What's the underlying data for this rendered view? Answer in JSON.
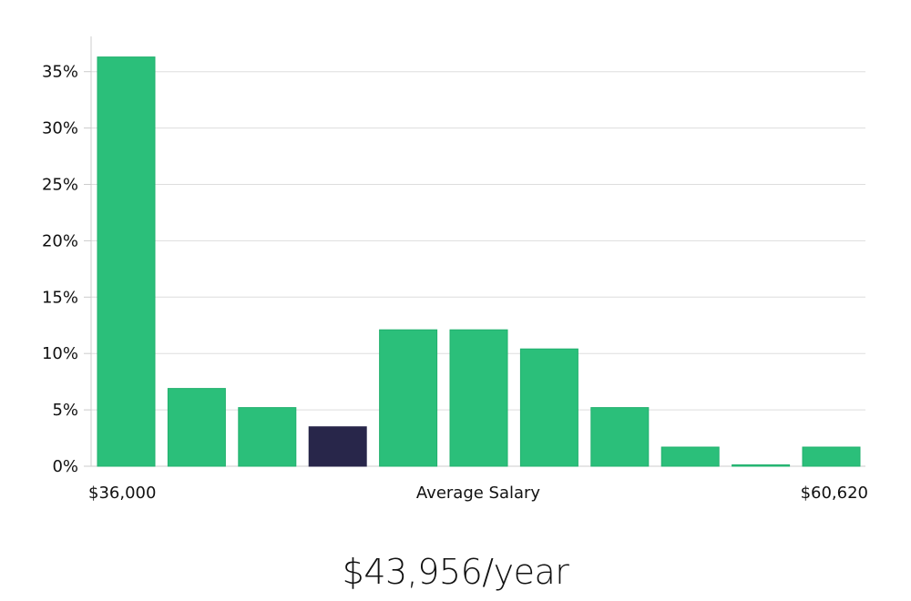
{
  "chart_data": {
    "type": "bar",
    "title": "",
    "xlabel": "Average Salary",
    "ylabel": "",
    "x_range_labels": {
      "min": "$36,000",
      "max": "$60,620"
    },
    "y_ticks": [
      0,
      5,
      10,
      15,
      20,
      25,
      30,
      35
    ],
    "y_tick_labels": [
      "0%",
      "5%",
      "10%",
      "15%",
      "20%",
      "25%",
      "30%",
      "35%"
    ],
    "ylim": [
      0,
      38
    ],
    "grid": true,
    "values": [
      36.3,
      6.9,
      5.2,
      3.5,
      12.1,
      12.1,
      10.4,
      5.2,
      1.7,
      0.1,
      1.7
    ],
    "highlight_index": 3,
    "colors": {
      "bar": "#2bbf7a",
      "bar_edge": "#22b06e",
      "highlight": "#28264a",
      "grid": "#dddddd",
      "axis": "#cccccc"
    }
  },
  "headline": "$43,956/year"
}
